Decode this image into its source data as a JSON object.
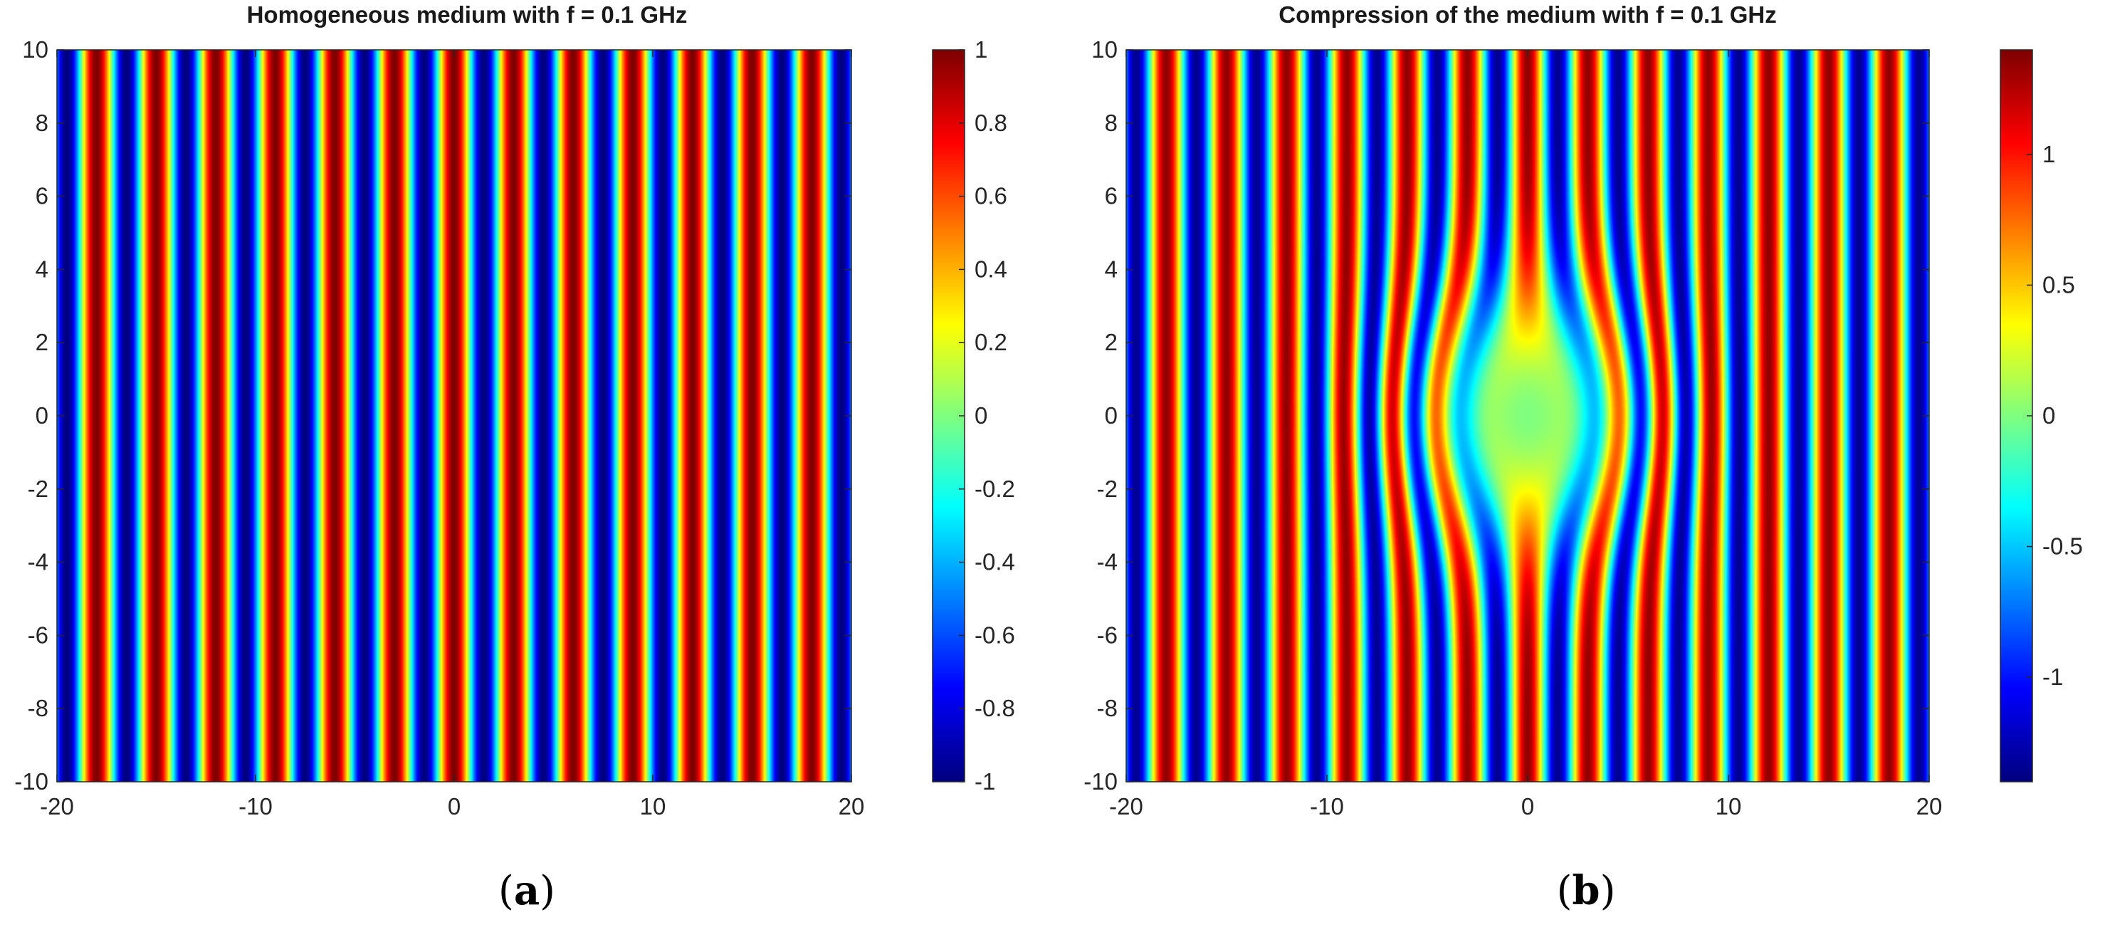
{
  "chart_data": [
    {
      "type": "heatmap",
      "panel_label": "a",
      "title": "Homogeneous medium with f = 0.1 GHz",
      "xlim": [
        -20,
        20
      ],
      "ylim": [
        -10,
        10
      ],
      "x_ticks": [
        "-20",
        "-10",
        "0",
        "10",
        "20"
      ],
      "y_ticks": [
        "10",
        "8",
        "6",
        "4",
        "2",
        "0",
        "-2",
        "-4",
        "-6",
        "-8",
        "-10"
      ],
      "colormap": "jet",
      "colorbar": {
        "range": [
          -1,
          1
        ],
        "ticks": [
          "1",
          "0.8",
          "0.6",
          "0.4",
          "0.2",
          "0",
          "-0.2",
          "-0.4",
          "-0.6",
          "-0.8",
          "-1"
        ]
      },
      "field": {
        "pattern": "plane wave cos(kx)",
        "wavelength": 3.0,
        "phase_origin_x": 0.0
      }
    },
    {
      "type": "heatmap",
      "panel_label": "b",
      "title": "Compression of the medium with f = 0.1 GHz",
      "xlim": [
        -20,
        20
      ],
      "ylim": [
        -10,
        10
      ],
      "x_ticks": [
        "-20",
        "-10",
        "0",
        "10",
        "20"
      ],
      "y_ticks": [
        "10",
        "8",
        "6",
        "4",
        "2",
        "0",
        "-2",
        "-4",
        "-6",
        "-8",
        "-10"
      ],
      "colormap": "jet",
      "colorbar": {
        "range": [
          -1.4,
          1.4
        ],
        "ticks": [
          "1",
          "0.5",
          "0",
          "-0.5",
          "-1"
        ]
      },
      "field": {
        "pattern": "plane wave with compressed central region",
        "wavelength": 3.0,
        "phase_origin_x": 0.0,
        "compression_center": [
          0,
          0
        ],
        "compression_radius": 6
      }
    }
  ]
}
